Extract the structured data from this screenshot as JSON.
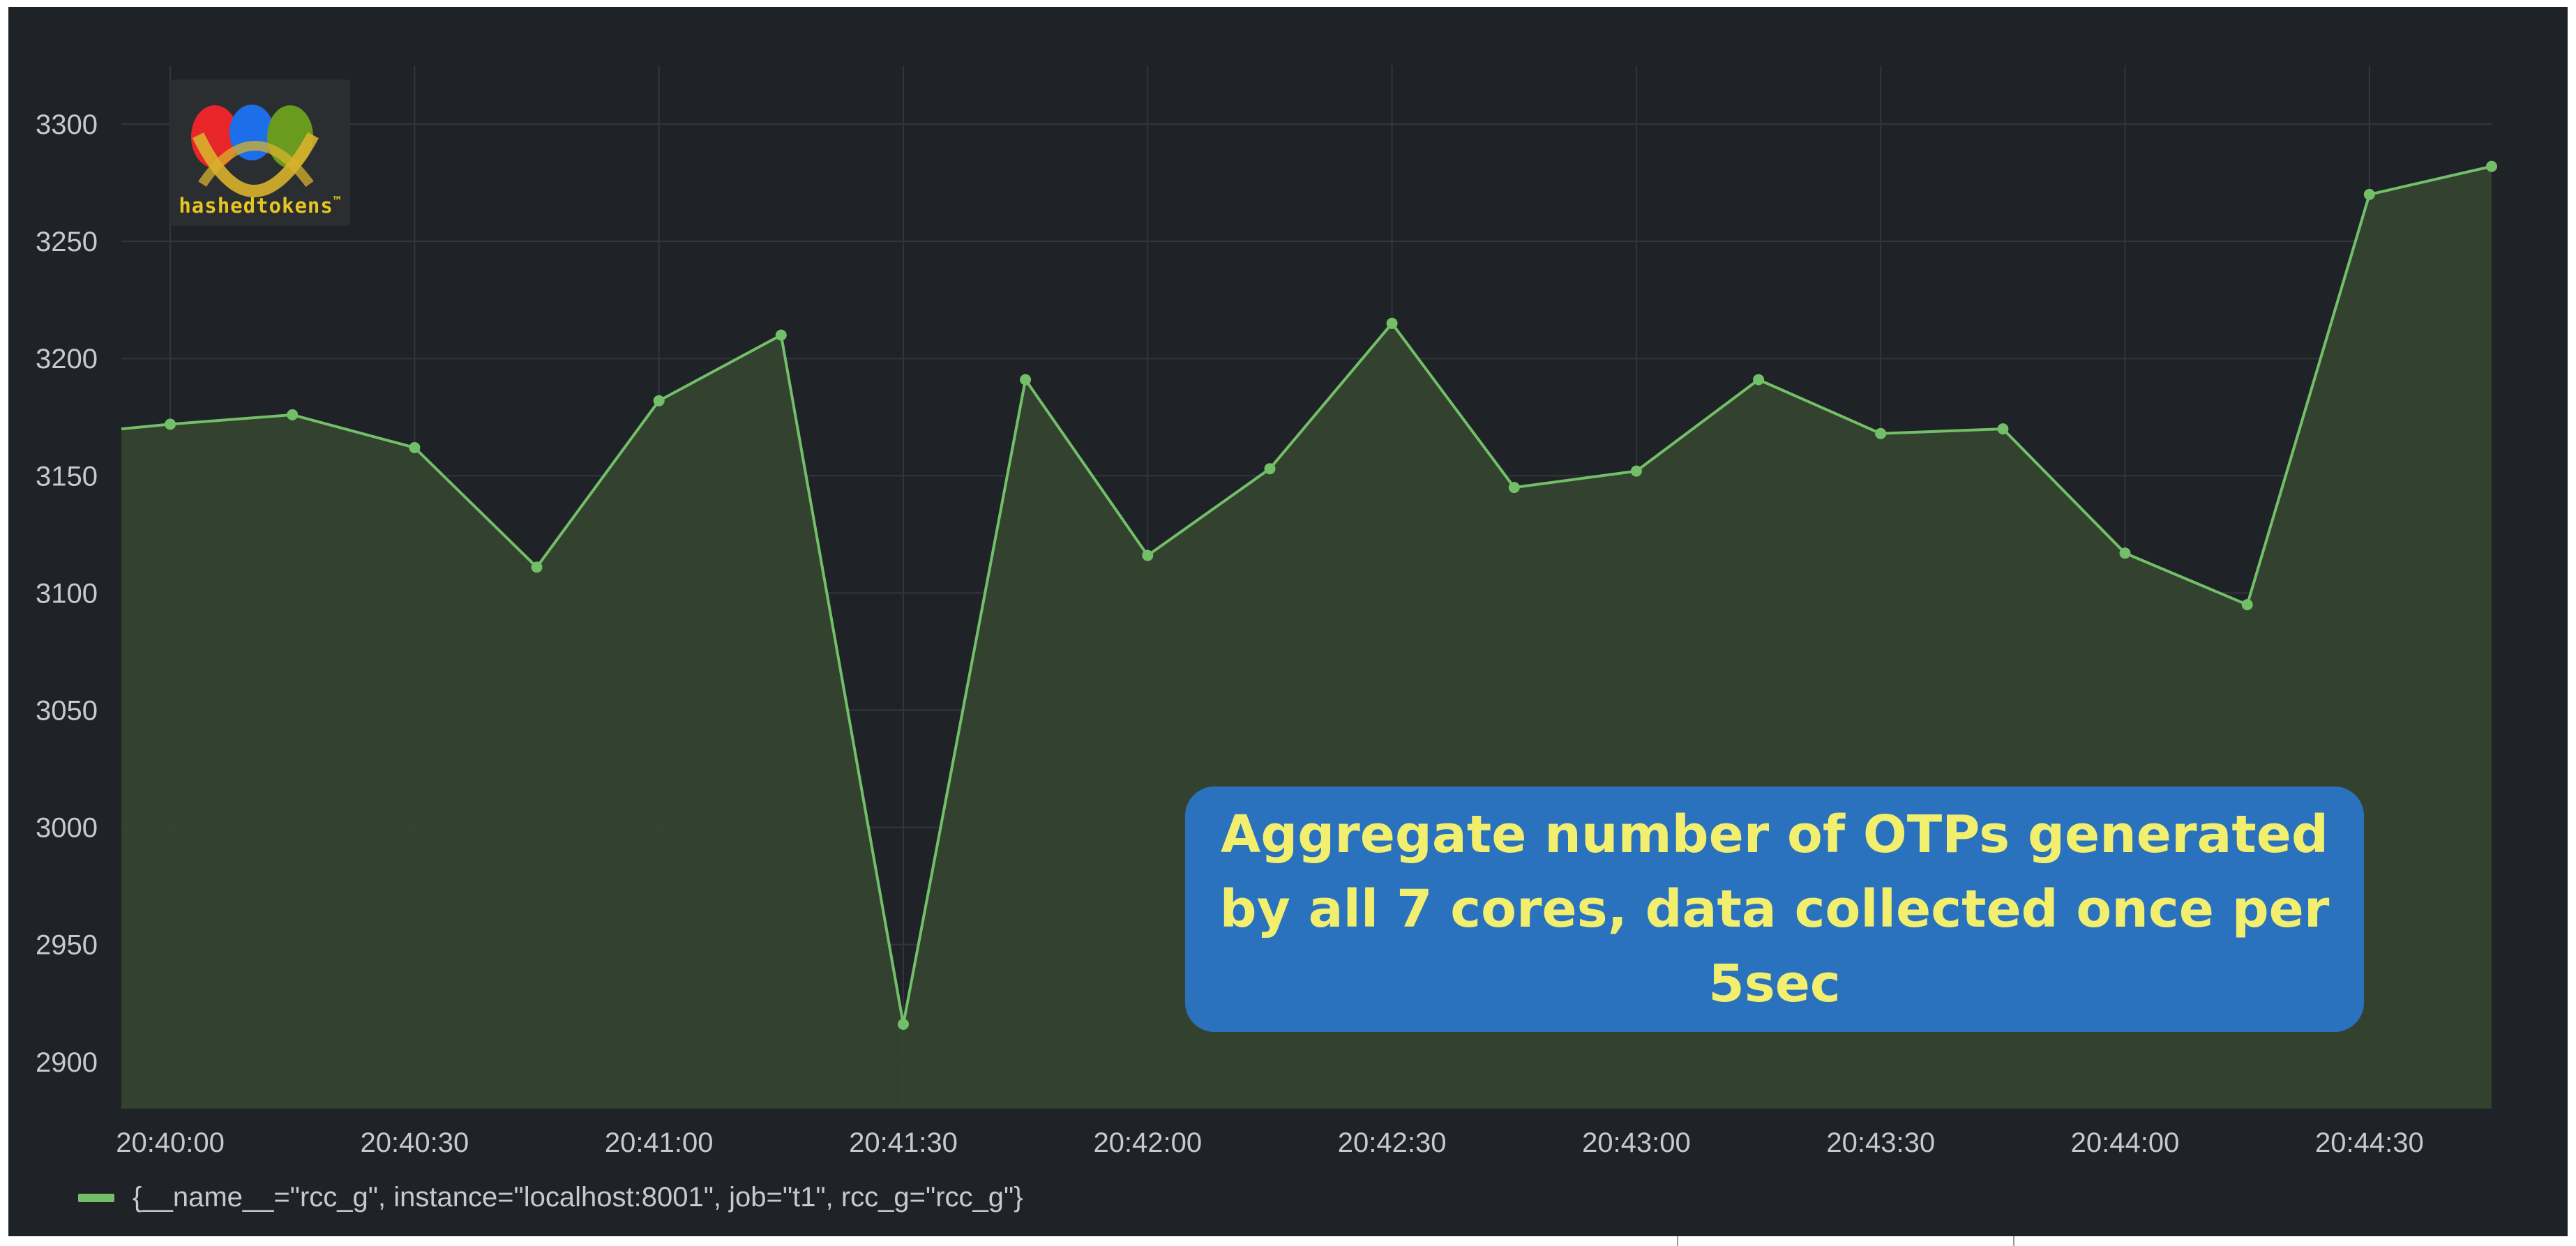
{
  "logo": {
    "text": "hashedtokens",
    "trademark": "™"
  },
  "annotation": {
    "text": "Aggregate number of OTPs generated by all 7 cores, data collected once per 5sec"
  },
  "colors": {
    "background": "#1f2226",
    "series_line": "#73bf69",
    "series_fill": "#34452f",
    "annotation_box": "#2b72be",
    "annotation_text": "#f2ef6f",
    "logo_text": "#e8c61f"
  },
  "chart_data": {
    "type": "area",
    "title": "",
    "xlabel": "",
    "ylabel": "",
    "ylim": [
      2880,
      3325
    ],
    "y_ticks": [
      2900,
      2950,
      3000,
      3050,
      3100,
      3150,
      3200,
      3250,
      3300
    ],
    "x_ticks": [
      "20:40:00",
      "20:40:30",
      "20:41:00",
      "20:41:30",
      "20:42:00",
      "20:42:30",
      "20:43:00",
      "20:43:30",
      "20:44:00",
      "20:44:30"
    ],
    "grid": true,
    "legend_position": "bottom-left",
    "x_range": [
      "20:39:54",
      "20:44:45"
    ],
    "series": [
      {
        "name": "{__name__=\"rcc_g\", instance=\"localhost:8001\", job=\"t1\", rcc_g=\"rcc_g\"}",
        "x": [
          "20:39:54",
          "20:40:00",
          "20:40:15",
          "20:40:30",
          "20:40:45",
          "20:41:00",
          "20:41:15",
          "20:41:30",
          "20:41:45",
          "20:42:00",
          "20:42:15",
          "20:42:30",
          "20:42:45",
          "20:43:00",
          "20:43:15",
          "20:43:30",
          "20:43:45",
          "20:44:00",
          "20:44:15",
          "20:44:30",
          "20:44:45"
        ],
        "values": [
          3170,
          3172,
          3176,
          3162,
          3111,
          3182,
          3210,
          2916,
          3191,
          3116,
          3153,
          3215,
          3145,
          3152,
          3191,
          3168,
          3170,
          3117,
          3095,
          3270,
          3282
        ],
        "markers": [
          false,
          true,
          true,
          true,
          true,
          true,
          true,
          true,
          true,
          true,
          true,
          true,
          true,
          true,
          true,
          true,
          true,
          true,
          true,
          true,
          true
        ]
      }
    ]
  }
}
